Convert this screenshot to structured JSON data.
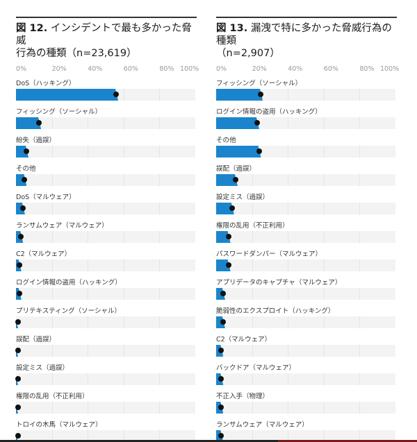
{
  "charts": [
    {
      "id": "fig12",
      "figure_label": "図 12.",
      "title": " インシデントで最も多かった脅威\n行為の種類（n=23,619）",
      "axis_ticks": [
        "0%",
        "20%",
        "40%",
        "60%",
        "80%",
        "100%"
      ],
      "rows": [
        {
          "label": "DoS（ハッキング）",
          "value": 57
        },
        {
          "label": "フィッシング（ソーシャル）",
          "value": 14
        },
        {
          "label": "紛失（過誤）",
          "value": 7
        },
        {
          "label": "その他",
          "value": 6
        },
        {
          "label": "DoS（マルウェア）",
          "value": 5
        },
        {
          "label": "ランサムウェア（マルウェア）",
          "value": 4
        },
        {
          "label": "C2（マルウェア）",
          "value": 3
        },
        {
          "label": "ログイン情報の盗用（ハッキング）",
          "value": 3
        },
        {
          "label": "プリテキスティング（ソーシャル）",
          "value": 1
        },
        {
          "label": "誤配（過誤）",
          "value": 1
        },
        {
          "label": "設定ミス（過誤）",
          "value": 1
        },
        {
          "label": "権限の乱用（不正利用）",
          "value": 1
        },
        {
          "label": "トロイの木馬（マルウェア）",
          "value": 1
        }
      ]
    },
    {
      "id": "fig13",
      "figure_label": "図 13.",
      "title": " 漏洩で特に多かった脅威行為の種類\n（n=2,907）",
      "axis_ticks": [
        "0%",
        "20%",
        "40%",
        "60%",
        "80%",
        "100%"
      ],
      "rows": [
        {
          "label": "フィッシング（ソーシャル）",
          "value": 26
        },
        {
          "label": "ログイン情報の盗用（ハッキング）",
          "value": 24
        },
        {
          "label": "その他",
          "value": 25
        },
        {
          "label": "誤配（過誤）",
          "value": 12
        },
        {
          "label": "設定ミス（過誤）",
          "value": 10
        },
        {
          "label": "権限の乱用（不正利用）",
          "value": 8
        },
        {
          "label": "パスワードダンパー（マルウェア）",
          "value": 8
        },
        {
          "label": "アプリデータのキャプチャ（マルウェア）",
          "value": 5
        },
        {
          "label": "脆弱性のエクスプロイト（ハッキング）",
          "value": 5
        },
        {
          "label": "C2（マルウェア）",
          "value": 4
        },
        {
          "label": "バックドア（マルウェア）",
          "value": 4
        },
        {
          "label": "不正入手（物理）",
          "value": 4
        },
        {
          "label": "ランサムウェア（マルウェア）",
          "value": 4
        }
      ]
    }
  ],
  "colors": {
    "bar": "#1a85cc",
    "track": "#f3f3f3",
    "dot": "#111111",
    "axis_text": "#9a9a9a"
  },
  "chart_data": [
    {
      "type": "bar",
      "orientation": "horizontal",
      "title": "図 12. インシデントで最も多かった脅威行為の種類（n=23,619）",
      "categories": [
        "DoS（ハッキング）",
        "フィッシング（ソーシャル）",
        "紛失（過誤）",
        "その他",
        "DoS（マルウェア）",
        "ランサムウェア（マルウェア）",
        "C2（マルウェア）",
        "ログイン情報の盗用（ハッキング）",
        "プリテキスティング（ソーシャル）",
        "誤配（過誤）",
        "設定ミス（過誤）",
        "権限の乱用（不正利用）",
        "トロイの木馬（マルウェア）"
      ],
      "values": [
        57,
        14,
        7,
        6,
        5,
        4,
        3,
        3,
        1,
        1,
        1,
        1,
        1
      ],
      "xlabel": "",
      "ylabel": "",
      "xlim": [
        0,
        100
      ],
      "xticks": [
        "0%",
        "20%",
        "40%",
        "60%",
        "80%",
        "100%"
      ],
      "grid": true,
      "legend": null
    },
    {
      "type": "bar",
      "orientation": "horizontal",
      "title": "図 13. 漏洩で特に多かった脅威行為の種類（n=2,907）",
      "categories": [
        "フィッシング（ソーシャル）",
        "ログイン情報の盗用（ハッキング）",
        "その他",
        "誤配（過誤）",
        "設定ミス（過誤）",
        "権限の乱用（不正利用）",
        "パスワードダンパー（マルウェア）",
        "アプリデータのキャプチャ（マルウェア）",
        "脆弱性のエクスプロイト（ハッキング）",
        "C2（マルウェア）",
        "バックドア（マルウェア）",
        "不正入手（物理）",
        "ランサムウェア（マルウェア）"
      ],
      "values": [
        26,
        24,
        25,
        12,
        10,
        8,
        8,
        5,
        5,
        4,
        4,
        4,
        4
      ],
      "xlabel": "",
      "ylabel": "",
      "xlim": [
        0,
        100
      ],
      "xticks": [
        "0%",
        "20%",
        "40%",
        "60%",
        "80%",
        "100%"
      ],
      "grid": true,
      "legend": null
    }
  ]
}
